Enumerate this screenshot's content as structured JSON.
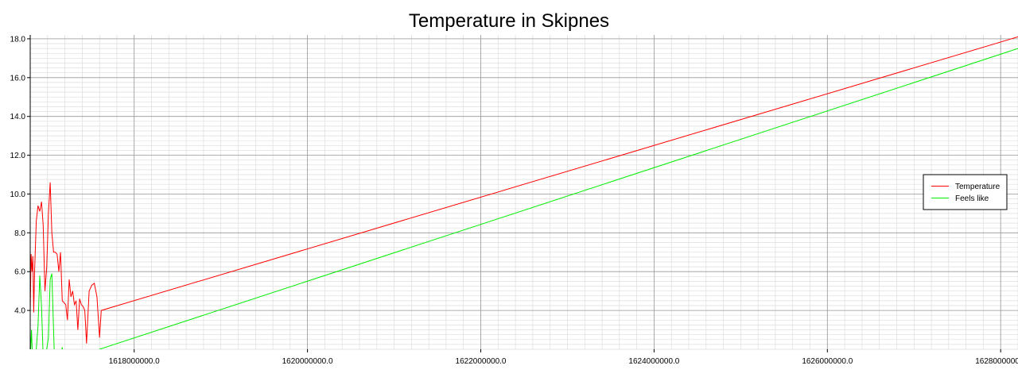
{
  "chart_data": {
    "type": "line",
    "title": "Temperature in Skipnes",
    "xlabel": "",
    "ylabel": "",
    "xlim": [
      1616800000,
      1628200000
    ],
    "ylim": [
      2.0,
      18.2
    ],
    "x_ticks": [
      1618000000,
      1620000000,
      1622000000,
      1624000000,
      1626000000,
      1628000000
    ],
    "x_tick_labels": [
      "1618000000.0",
      "1620000000.0",
      "1622000000.0",
      "1624000000.0",
      "1626000000.0",
      "1628000000.0"
    ],
    "y_ticks": [
      4,
      6,
      8,
      10,
      12,
      14,
      16,
      18
    ],
    "y_tick_labels": [
      "4.0",
      "6.0",
      "8.0",
      "10.0",
      "12.0",
      "14.0",
      "16.0",
      "18.0"
    ],
    "grid": true,
    "legend_position": "right",
    "series": [
      {
        "name": "Temperature",
        "color": "#ff0000",
        "x": [
          1616800000,
          1616810000,
          1616820000,
          1616830000,
          1616840000,
          1616850000,
          1616870000,
          1616890000,
          1616910000,
          1616930000,
          1616950000,
          1616970000,
          1616990000,
          1617010000,
          1617030000,
          1617050000,
          1617070000,
          1617090000,
          1617110000,
          1617130000,
          1617150000,
          1617170000,
          1617190000,
          1617210000,
          1617230000,
          1617250000,
          1617270000,
          1617290000,
          1617310000,
          1617330000,
          1617350000,
          1617370000,
          1617390000,
          1617410000,
          1617430000,
          1617450000,
          1617480000,
          1617510000,
          1617540000,
          1617570000,
          1617600000,
          1617620000,
          1628200000
        ],
        "values": [
          3.9,
          6.9,
          6.0,
          6.8,
          3.9,
          5.9,
          8.6,
          9.4,
          9.1,
          9.6,
          8.4,
          5.0,
          6.2,
          9.0,
          10.6,
          8.0,
          7.0,
          7.0,
          6.9,
          6.0,
          7.0,
          4.5,
          4.4,
          4.3,
          3.5,
          5.6,
          4.7,
          5.0,
          4.3,
          4.5,
          3.0,
          4.6,
          4.3,
          4.2,
          4.0,
          2.3,
          5.0,
          5.3,
          5.4,
          4.7,
          2.6,
          4.0,
          18.1
        ]
      },
      {
        "name": "Feels like",
        "color": "#00ee00",
        "x": [
          1616800000,
          1616815000,
          1616830000,
          1616850000,
          1616870000,
          1616890000,
          1616910000,
          1616930000,
          1616950000,
          1616970000,
          1616990000,
          1617010000,
          1617030000,
          1617050000,
          1617080000,
          1617110000,
          1617140000,
          1617170000,
          1617200000,
          1617600000,
          1628200000
        ],
        "values": [
          1.5,
          3.0,
          1.0,
          1.8,
          2.0,
          3.2,
          5.8,
          4.2,
          1.6,
          1.0,
          2.0,
          2.6,
          5.6,
          5.9,
          1.5,
          1.9,
          1.2,
          2.1,
          1.0,
          2.0,
          17.5
        ]
      }
    ]
  }
}
